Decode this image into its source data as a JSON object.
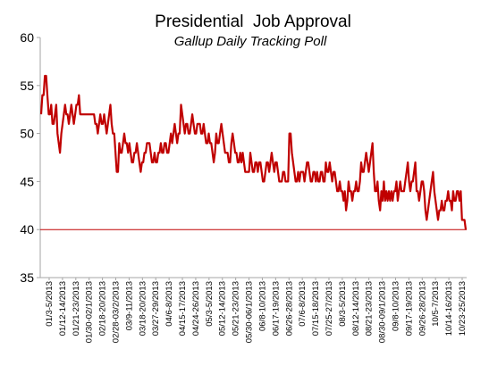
{
  "chart_data": {
    "type": "line",
    "title": "Presidential  Job Approval",
    "subtitle": "Gallup Daily Tracking Poll",
    "xlabel": "",
    "ylabel": "",
    "ylim": [
      35,
      60
    ],
    "yticks": [
      35,
      40,
      45,
      50,
      55,
      60
    ],
    "grid": false,
    "reference_line": 40,
    "colors": {
      "series": "#c00000",
      "reference": "#c00000",
      "axis": "#a6a6a6"
    },
    "x_tick_labels": [
      "01/3-5/2013",
      "01/12-14/2013",
      "01/21-23/2013",
      "01/30-02/1/2013",
      "02/18-20/2013",
      "02/28-03/2/2013",
      "03/9-11/2013",
      "03/18-20/2013",
      "03/27-29/2013",
      "04/6-8/2013",
      "04/15-17/2013",
      "04/24-26/2013",
      "05/3-5/2013",
      "05/12-14/2013",
      "05/21-23/2013",
      "05/30-06/1/2013",
      "06/8-10/2013",
      "06/17-19/2013",
      "06/26-28/2013",
      "07/6-8/2013",
      "07/15-18/2013",
      "07/25-27/2013",
      "08/3-5/2013",
      "08/12-14/2013",
      "08/21-23/2013",
      "08/30-09/1/2013",
      "09/8-10/2013",
      "09/17-19/2013",
      "09/26-28/2013",
      "10/5-7/2013",
      "10/14-16/2013",
      "10/23-25/2013"
    ],
    "series": [
      {
        "values": [
          52,
          54,
          54,
          56,
          56,
          54,
          52,
          52,
          53,
          51,
          51,
          52,
          53,
          50,
          49,
          48,
          50,
          51,
          52,
          53,
          52,
          52,
          51,
          52,
          53,
          52,
          51,
          52,
          53,
          53,
          54,
          52,
          52,
          52,
          52,
          52,
          52,
          52,
          52,
          52,
          52,
          52,
          52,
          51,
          51,
          50,
          51,
          52,
          51,
          51,
          52,
          51,
          50,
          51,
          52,
          53,
          51,
          50,
          50,
          48,
          46,
          46,
          49,
          48,
          48,
          49,
          50,
          49,
          49,
          48,
          49,
          48,
          47,
          47,
          48,
          48,
          49,
          48,
          47,
          46,
          47,
          47,
          48,
          48,
          49,
          49,
          49,
          48,
          47,
          47,
          48,
          47,
          47,
          48,
          48,
          49,
          48,
          48,
          49,
          49,
          48,
          48,
          49,
          50,
          49,
          50,
          51,
          50,
          49,
          50,
          50,
          53,
          52,
          51,
          50,
          51,
          51,
          50,
          50,
          51,
          52,
          51,
          50,
          50,
          51,
          51,
          51,
          50,
          50,
          51,
          50,
          49,
          49,
          50,
          49,
          49,
          48,
          47,
          48,
          50,
          49,
          49,
          50,
          51,
          50,
          49,
          48,
          48,
          48,
          47,
          47,
          49,
          50,
          49,
          48,
          48,
          47,
          47,
          48,
          47,
          48,
          47,
          46,
          46,
          46,
          46,
          48,
          47,
          46,
          46,
          47,
          47,
          46,
          47,
          47,
          46,
          45,
          45,
          46,
          47,
          47,
          46,
          47,
          48,
          47,
          46,
          47,
          47,
          46,
          45,
          45,
          45,
          46,
          46,
          45,
          45,
          45,
          50,
          50,
          48,
          47,
          46,
          45,
          45,
          46,
          45,
          46,
          46,
          46,
          45,
          46,
          47,
          47,
          46,
          45,
          45,
          46,
          46,
          45,
          46,
          45,
          45,
          46,
          46,
          45,
          45,
          47,
          46,
          46,
          47,
          46,
          45,
          46,
          46,
          45,
          44,
          44,
          45,
          44,
          44,
          43,
          44,
          42,
          43,
          45,
          44,
          44,
          43,
          44,
          44,
          45,
          44,
          44,
          45,
          47,
          46,
          46,
          47,
          48,
          47,
          46,
          47,
          48,
          49,
          46,
          44,
          44,
          45,
          43,
          42,
          44,
          43,
          45,
          43,
          44,
          43,
          44,
          43,
          44,
          43,
          44,
          44,
          45,
          43,
          44,
          45,
          44,
          44,
          44,
          45,
          46,
          47,
          45,
          44,
          45,
          45,
          46,
          47,
          44,
          44,
          43,
          44,
          45,
          45,
          44,
          42,
          41,
          42,
          43,
          44,
          45,
          46,
          44,
          43,
          42,
          41,
          42,
          42,
          43,
          42,
          42,
          43,
          43,
          44,
          43,
          43,
          42,
          44,
          43,
          43,
          44,
          44,
          43,
          44,
          41,
          41,
          41,
          40
        ]
      }
    ]
  }
}
